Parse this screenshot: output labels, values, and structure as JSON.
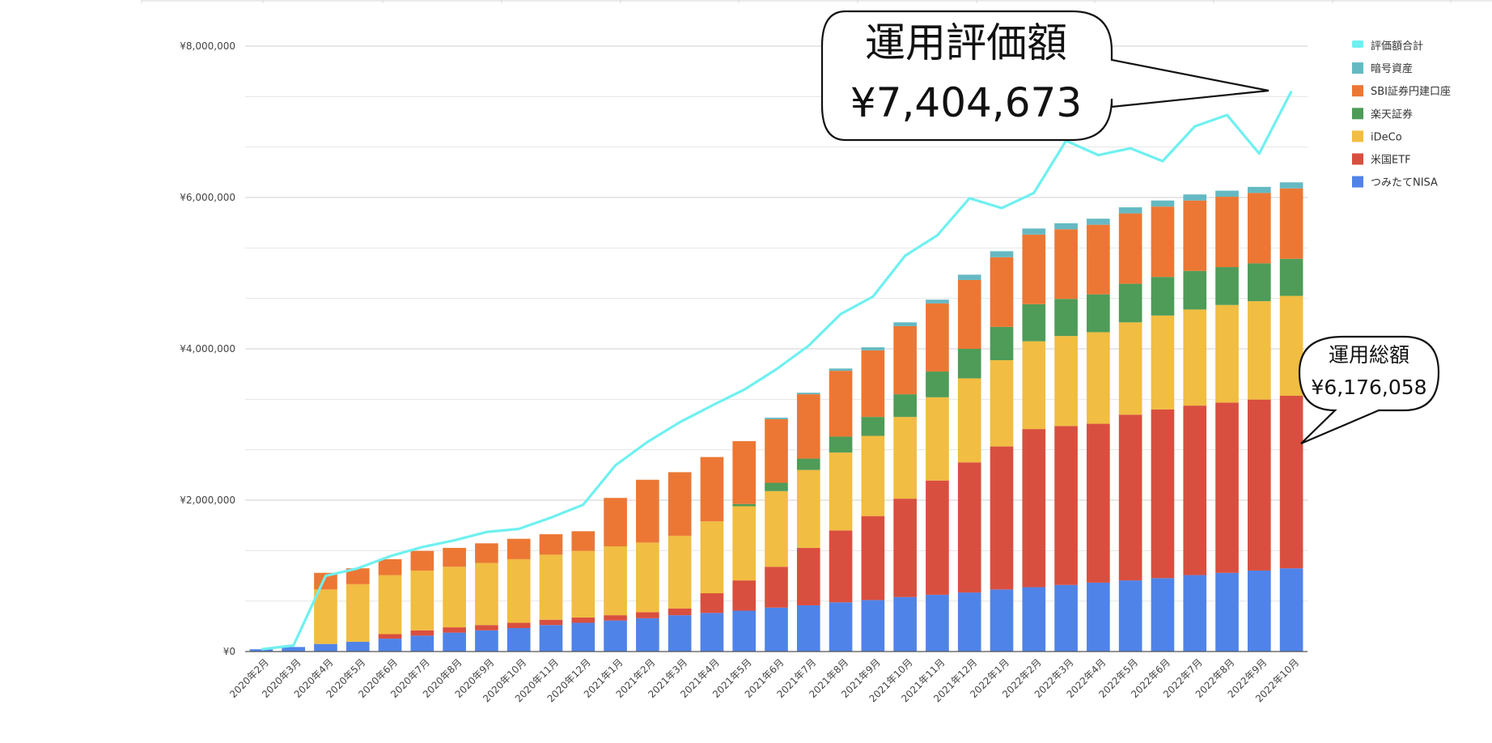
{
  "chart_data": {
    "type": "bar",
    "subtype": "stacked-bar-with-line",
    "title": "",
    "xlabel": "",
    "ylabel": "",
    "ylim": [
      0,
      8000000
    ],
    "yticks": [
      "¥0",
      "¥2,000,000",
      "¥4,000,000",
      "¥6,000,000",
      "¥8,000,000"
    ],
    "ytick_values": [
      0,
      2000000,
      4000000,
      6000000,
      8000000
    ],
    "grid": true,
    "legend_position": "right",
    "categories": [
      "2020年2月",
      "2020年3月",
      "2020年4月",
      "2020年5月",
      "2020年6月",
      "2020年7月",
      "2020年8月",
      "2020年9月",
      "2020年10月",
      "2020年11月",
      "2020年12月",
      "2021年1月",
      "2021年2月",
      "2021年3月",
      "2021年4月",
      "2021年5月",
      "2021年6月",
      "2021年7月",
      "2021年8月",
      "2021年9月",
      "2021年10月",
      "2021年11月",
      "2021年12月",
      "2022年1月",
      "2022年2月",
      "2022年3月",
      "2022年4月",
      "2022年5月",
      "2022年6月",
      "2022年7月",
      "2022年8月",
      "2022年9月",
      "2022年10月"
    ],
    "series": [
      {
        "name": "つみたてNISA",
        "color": "#5083e8",
        "values": [
          30000,
          60000,
          100000,
          130000,
          170000,
          210000,
          250000,
          280000,
          310000,
          350000,
          380000,
          410000,
          440000,
          480000,
          510000,
          540000,
          580000,
          610000,
          650000,
          680000,
          720000,
          750000,
          780000,
          820000,
          850000,
          880000,
          910000,
          940000,
          970000,
          1010000,
          1040000,
          1070000,
          1100000
        ]
      },
      {
        "name": "米国ETF",
        "color": "#d94f3f",
        "values": [
          0,
          0,
          0,
          0,
          60000,
          70000,
          70000,
          70000,
          70000,
          70000,
          70000,
          70000,
          80000,
          90000,
          260000,
          400000,
          540000,
          760000,
          950000,
          1110000,
          1300000,
          1510000,
          1720000,
          1890000,
          2090000,
          2100000,
          2100000,
          2190000,
          2230000,
          2240000,
          2250000,
          2260000,
          2280000
        ]
      },
      {
        "name": "iDeCo",
        "color": "#f1bd42",
        "values": [
          0,
          0,
          720000,
          760000,
          780000,
          790000,
          800000,
          820000,
          840000,
          860000,
          880000,
          910000,
          920000,
          960000,
          950000,
          980000,
          1000000,
          1030000,
          1030000,
          1060000,
          1080000,
          1100000,
          1110000,
          1140000,
          1160000,
          1190000,
          1210000,
          1220000,
          1240000,
          1270000,
          1290000,
          1300000,
          1320000
        ]
      },
      {
        "name": "楽天証券",
        "color": "#4e9c58",
        "values": [
          0,
          0,
          0,
          0,
          0,
          0,
          0,
          0,
          0,
          0,
          0,
          0,
          0,
          0,
          0,
          30000,
          110000,
          150000,
          210000,
          250000,
          300000,
          340000,
          390000,
          440000,
          490000,
          490000,
          500000,
          510000,
          510000,
          510000,
          500000,
          500000,
          490000
        ]
      },
      {
        "name": "SBI証券円建口座",
        "color": "#ec7734",
        "values": [
          0,
          0,
          220000,
          210000,
          210000,
          260000,
          250000,
          260000,
          270000,
          270000,
          260000,
          640000,
          830000,
          840000,
          850000,
          830000,
          840000,
          850000,
          870000,
          880000,
          900000,
          900000,
          910000,
          920000,
          920000,
          920000,
          920000,
          930000,
          930000,
          930000,
          930000,
          930000,
          930000
        ]
      },
      {
        "name": "暗号資産",
        "color": "#65b9c2",
        "values": [
          0,
          0,
          0,
          0,
          0,
          0,
          0,
          0,
          0,
          0,
          0,
          0,
          0,
          0,
          0,
          0,
          20000,
          20000,
          30000,
          40000,
          50000,
          50000,
          70000,
          80000,
          80000,
          80000,
          80000,
          80000,
          80000,
          80000,
          80000,
          80000,
          80000
        ]
      }
    ],
    "line": {
      "name": "評価額合計",
      "color": "#6ff0f0",
      "values": [
        30000,
        80000,
        1000000,
        1100000,
        1260000,
        1380000,
        1470000,
        1580000,
        1620000,
        1770000,
        1940000,
        2460000,
        2770000,
        3030000,
        3250000,
        3460000,
        3730000,
        4040000,
        4460000,
        4690000,
        5230000,
        5500000,
        5990000,
        5860000,
        6060000,
        6750000,
        6560000,
        6650000,
        6480000,
        6940000,
        7090000,
        6580000,
        7404673
      ]
    },
    "legend_order": [
      "評価額合計",
      "暗号資産",
      "SBI証券円建口座",
      "楽天証券",
      "iDeCo",
      "米国ETF",
      "つみたてNISA"
    ],
    "annotations": [
      {
        "id": "valuation",
        "line1": "運用評価額",
        "line2": "¥7,404,673"
      },
      {
        "id": "total",
        "line1": "運用総額",
        "line2": "¥6,176,058"
      }
    ]
  }
}
